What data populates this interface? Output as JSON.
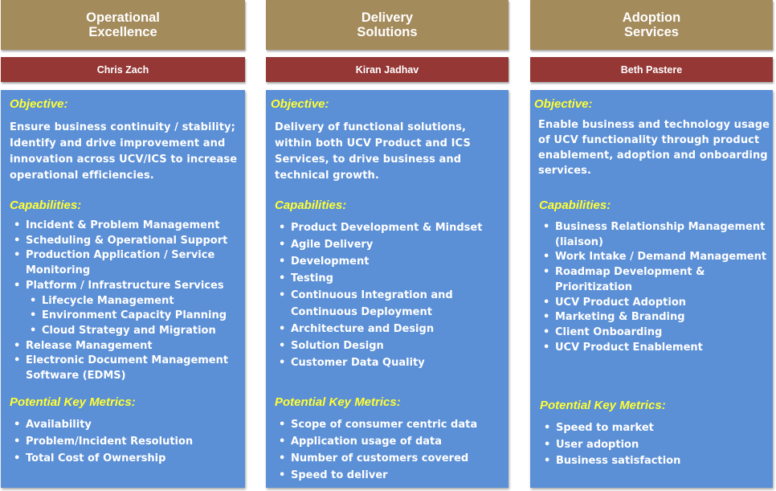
{
  "columns": [
    {
      "title": "Operational\nExcellence",
      "lead": "Chris Zach",
      "objective_label": "Objective:",
      "objective": "Ensure business continuity / stability; Identify and drive improvement and innovation across UCV/ICS to increase operational efficiencies.",
      "capabilities_label": "Capabilities:",
      "capabilities": [
        "Incident & Problem Management",
        "Scheduling & Operational Support",
        "Production Application / Service Monitoring",
        "Platform / Infrastructure Services",
        "Lifecycle Management",
        "Environment Capacity Planning",
        "Cloud Strategy and Migration",
        "Release Management",
        "Electronic Document Management Software  (EDMS)"
      ],
      "metrics_label": "Potential Key Metrics:",
      "metrics": [
        "Availability",
        "Problem/Incident Resolution",
        "Total Cost of Ownership"
      ]
    },
    {
      "title": "Delivery\nSolutions",
      "lead": "Kiran Jadhav",
      "objective_label": "Objective:",
      "objective": "Delivery of functional solutions, within both UCV Product and ICS Services, to drive business and technical growth.",
      "capabilities_label": "Capabilities:",
      "capabilities": [
        "Product Development & Mindset",
        "Agile Delivery",
        "Development",
        "Testing",
        "Continuous Integration and Continuous Deployment",
        "Architecture and Design",
        "Solution Design",
        "Customer Data Quality"
      ],
      "metrics_label": "Potential Key Metrics:",
      "metrics": [
        "Scope of consumer centric data",
        "Application usage of data",
        "Number of customers covered",
        "Speed to deliver"
      ]
    },
    {
      "title": "Adoption\nServices",
      "lead": "Beth Pastere",
      "objective_label": "Objective:",
      "objective": "Enable business and technology usage of UCV functionality through product enablement, adoption and onboarding services.",
      "capabilities_label": "Capabilities:",
      "capabilities": [
        "Business Relationship Management (liaison)",
        "Work Intake / Demand Management",
        "Roadmap Development & Prioritization",
        "UCV Product Adoption",
        "Marketing & Branding",
        "Client Onboarding",
        "UCV Product Enablement"
      ],
      "metrics_label": "Potential Key Metrics:",
      "metrics": [
        "Speed to market",
        "User adoption",
        "Business satisfaction"
      ]
    }
  ],
  "colors": {
    "header": "#a48b5c",
    "lead": "#943735",
    "panel": "#5b8fd6",
    "section_title": "#ffff33",
    "text": "#ffffff"
  }
}
